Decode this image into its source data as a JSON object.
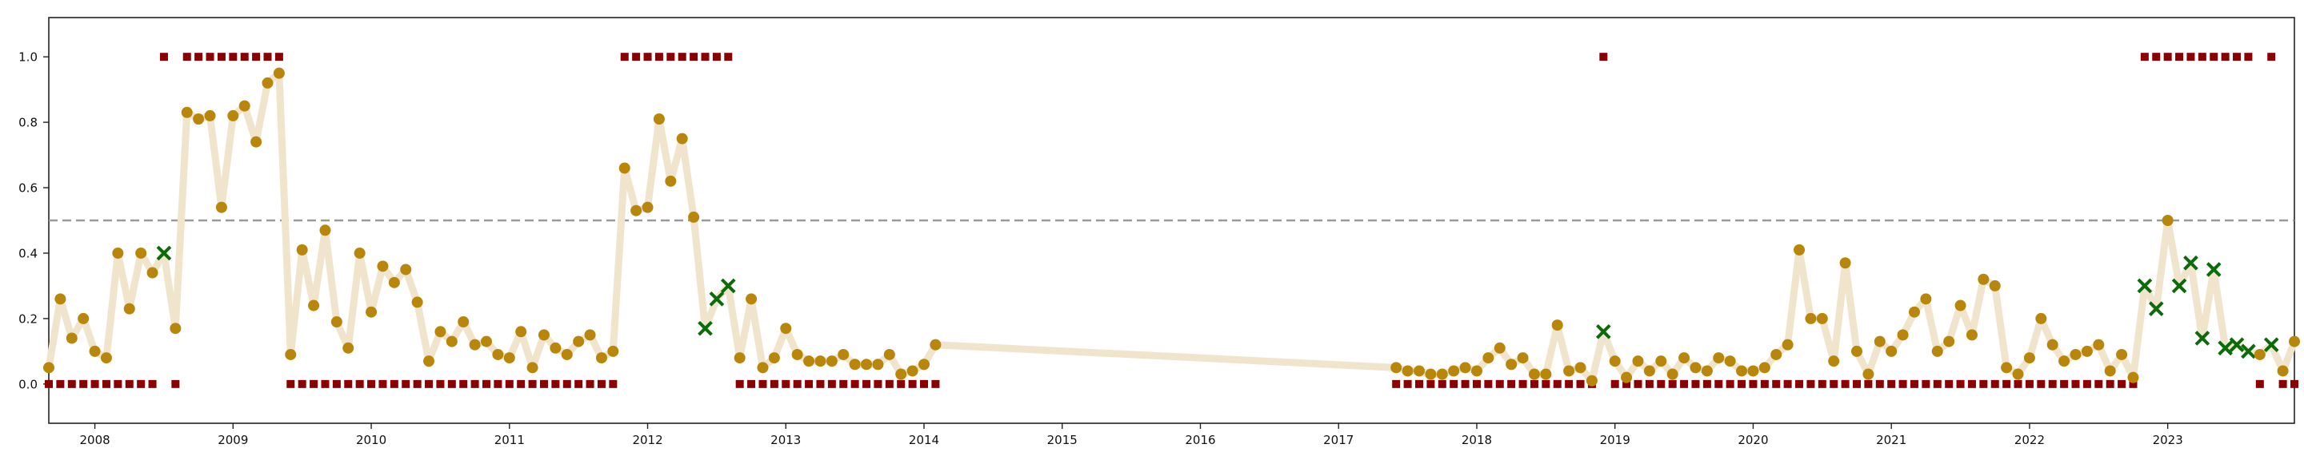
{
  "chart_data": {
    "type": "scatter",
    "x_axis": {
      "type": "date",
      "range": [
        "2007-09-01",
        "2023-12-01"
      ],
      "ticks": [
        "2008",
        "2009",
        "2010",
        "2011",
        "2012",
        "2013",
        "2014",
        "2015",
        "2016",
        "2017",
        "2018",
        "2019",
        "2020",
        "2021",
        "2022",
        "2023"
      ]
    },
    "y_axis": {
      "range": [
        -0.12,
        1.12
      ],
      "ticks": [
        "0.0",
        "0.2",
        "0.4",
        "0.6",
        "0.8",
        "1.0"
      ]
    },
    "reference_line": {
      "y": 0.5,
      "style": "dashed",
      "color": "#999999"
    },
    "colors": {
      "trend_line": "#f0e4cc",
      "probability_point": "#b8860b",
      "cross_marker": "#0a6b0a",
      "label_square": "#8b0000"
    },
    "grid": false,
    "legend": "none",
    "score_series": [
      [
        "2007-09",
        0.05
      ],
      [
        "2007-10",
        0.26
      ],
      [
        "2007-11",
        0.14
      ],
      [
        "2007-12",
        0.2
      ],
      [
        "2008-01",
        0.1
      ],
      [
        "2008-02",
        0.08
      ],
      [
        "2008-03",
        0.4
      ],
      [
        "2008-04",
        0.23
      ],
      [
        "2008-05",
        0.4
      ],
      [
        "2008-06",
        0.34
      ],
      [
        "2008-07",
        0.4
      ],
      [
        "2008-08",
        0.17
      ],
      [
        "2008-09",
        0.83
      ],
      [
        "2008-10",
        0.81
      ],
      [
        "2008-11",
        0.82
      ],
      [
        "2008-12",
        0.54
      ],
      [
        "2009-01",
        0.82
      ],
      [
        "2009-02",
        0.85
      ],
      [
        "2009-03",
        0.74
      ],
      [
        "2009-04",
        0.92
      ],
      [
        "2009-05",
        0.95
      ],
      [
        "2009-06",
        0.09
      ],
      [
        "2009-07",
        0.41
      ],
      [
        "2009-08",
        0.24
      ],
      [
        "2009-09",
        0.47
      ],
      [
        "2009-10",
        0.19
      ],
      [
        "2009-11",
        0.11
      ],
      [
        "2009-12",
        0.4
      ],
      [
        "2010-01",
        0.22
      ],
      [
        "2010-02",
        0.36
      ],
      [
        "2010-03",
        0.31
      ],
      [
        "2010-04",
        0.35
      ],
      [
        "2010-05",
        0.25
      ],
      [
        "2010-06",
        0.07
      ],
      [
        "2010-07",
        0.16
      ],
      [
        "2010-08",
        0.13
      ],
      [
        "2010-09",
        0.19
      ],
      [
        "2010-10",
        0.12
      ],
      [
        "2010-11",
        0.13
      ],
      [
        "2010-12",
        0.09
      ],
      [
        "2011-01",
        0.08
      ],
      [
        "2011-02",
        0.16
      ],
      [
        "2011-03",
        0.05
      ],
      [
        "2011-04",
        0.15
      ],
      [
        "2011-05",
        0.11
      ],
      [
        "2011-06",
        0.09
      ],
      [
        "2011-07",
        0.13
      ],
      [
        "2011-08",
        0.15
      ],
      [
        "2011-09",
        0.08
      ],
      [
        "2011-10",
        0.1
      ],
      [
        "2011-11",
        0.66
      ],
      [
        "2011-12",
        0.53
      ],
      [
        "2012-01",
        0.54
      ],
      [
        "2012-02",
        0.81
      ],
      [
        "2012-03",
        0.62
      ],
      [
        "2012-04",
        0.75
      ],
      [
        "2012-05",
        0.51
      ],
      [
        "2012-06",
        0.17
      ],
      [
        "2012-07",
        0.26
      ],
      [
        "2012-08",
        0.3
      ],
      [
        "2012-09",
        0.08
      ],
      [
        "2012-10",
        0.26
      ],
      [
        "2012-11",
        0.05
      ],
      [
        "2012-12",
        0.08
      ],
      [
        "2013-01",
        0.17
      ],
      [
        "2013-02",
        0.09
      ],
      [
        "2013-03",
        0.07
      ],
      [
        "2013-04",
        0.07
      ],
      [
        "2013-05",
        0.07
      ],
      [
        "2013-06",
        0.09
      ],
      [
        "2013-07",
        0.06
      ],
      [
        "2013-08",
        0.06
      ],
      [
        "2013-09",
        0.06
      ],
      [
        "2013-10",
        0.09
      ],
      [
        "2013-11",
        0.03
      ],
      [
        "2013-12",
        0.04
      ],
      [
        "2014-01",
        0.06
      ],
      [
        "2014-02",
        0.12
      ],
      [
        "2017-06",
        0.05
      ],
      [
        "2017-07",
        0.04
      ],
      [
        "2017-08",
        0.04
      ],
      [
        "2017-09",
        0.03
      ],
      [
        "2017-10",
        0.03
      ],
      [
        "2017-11",
        0.04
      ],
      [
        "2017-12",
        0.05
      ],
      [
        "2018-01",
        0.04
      ],
      [
        "2018-02",
        0.08
      ],
      [
        "2018-03",
        0.11
      ],
      [
        "2018-04",
        0.06
      ],
      [
        "2018-05",
        0.08
      ],
      [
        "2018-06",
        0.03
      ],
      [
        "2018-07",
        0.03
      ],
      [
        "2018-08",
        0.18
      ],
      [
        "2018-09",
        0.04
      ],
      [
        "2018-10",
        0.05
      ],
      [
        "2018-11",
        0.01
      ],
      [
        "2018-12",
        0.16
      ],
      [
        "2019-01",
        0.07
      ],
      [
        "2019-02",
        0.02
      ],
      [
        "2019-03",
        0.07
      ],
      [
        "2019-04",
        0.04
      ],
      [
        "2019-05",
        0.07
      ],
      [
        "2019-06",
        0.03
      ],
      [
        "2019-07",
        0.08
      ],
      [
        "2019-08",
        0.05
      ],
      [
        "2019-09",
        0.04
      ],
      [
        "2019-10",
        0.08
      ],
      [
        "2019-11",
        0.07
      ],
      [
        "2019-12",
        0.04
      ],
      [
        "2020-01",
        0.04
      ],
      [
        "2020-02",
        0.05
      ],
      [
        "2020-03",
        0.09
      ],
      [
        "2020-04",
        0.12
      ],
      [
        "2020-05",
        0.41
      ],
      [
        "2020-06",
        0.2
      ],
      [
        "2020-07",
        0.2
      ],
      [
        "2020-08",
        0.07
      ],
      [
        "2020-09",
        0.37
      ],
      [
        "2020-10",
        0.1
      ],
      [
        "2020-11",
        0.03
      ],
      [
        "2020-12",
        0.13
      ],
      [
        "2021-01",
        0.1
      ],
      [
        "2021-02",
        0.15
      ],
      [
        "2021-03",
        0.22
      ],
      [
        "2021-04",
        0.26
      ],
      [
        "2021-05",
        0.1
      ],
      [
        "2021-06",
        0.13
      ],
      [
        "2021-07",
        0.24
      ],
      [
        "2021-08",
        0.15
      ],
      [
        "2021-09",
        0.32
      ],
      [
        "2021-10",
        0.3
      ],
      [
        "2021-11",
        0.05
      ],
      [
        "2021-12",
        0.03
      ],
      [
        "2022-01",
        0.08
      ],
      [
        "2022-02",
        0.2
      ],
      [
        "2022-03",
        0.12
      ],
      [
        "2022-04",
        0.07
      ],
      [
        "2022-05",
        0.09
      ],
      [
        "2022-06",
        0.1
      ],
      [
        "2022-07",
        0.12
      ],
      [
        "2022-08",
        0.04
      ],
      [
        "2022-09",
        0.09
      ],
      [
        "2022-10",
        0.02
      ],
      [
        "2022-11",
        0.3
      ],
      [
        "2022-12",
        0.23
      ],
      [
        "2023-01",
        0.5
      ],
      [
        "2023-02",
        0.3
      ],
      [
        "2023-03",
        0.37
      ],
      [
        "2023-04",
        0.14
      ],
      [
        "2023-05",
        0.35
      ],
      [
        "2023-06",
        0.11
      ],
      [
        "2023-07",
        0.12
      ],
      [
        "2023-08",
        0.1
      ],
      [
        "2023-09",
        0.09
      ],
      [
        "2023-10",
        0.12
      ],
      [
        "2023-11",
        0.04
      ],
      [
        "2023-12",
        0.13
      ]
    ],
    "cross_months": [
      "2008-07",
      "2012-06",
      "2012-07",
      "2012-08",
      "2018-12",
      "2022-11",
      "2022-12",
      "2023-02",
      "2023-03",
      "2023-04",
      "2023-05",
      "2023-06",
      "2023-07",
      "2023-08",
      "2023-10"
    ],
    "label_series": [
      [
        "2007-09",
        0
      ],
      [
        "2007-10",
        0
      ],
      [
        "2007-11",
        0
      ],
      [
        "2007-12",
        0
      ],
      [
        "2008-01",
        0
      ],
      [
        "2008-02",
        0
      ],
      [
        "2008-03",
        0
      ],
      [
        "2008-04",
        0
      ],
      [
        "2008-05",
        0
      ],
      [
        "2008-06",
        0
      ],
      [
        "2008-07",
        1
      ],
      [
        "2008-08",
        0
      ],
      [
        "2008-09",
        1
      ],
      [
        "2008-10",
        1
      ],
      [
        "2008-11",
        1
      ],
      [
        "2008-12",
        1
      ],
      [
        "2009-01",
        1
      ],
      [
        "2009-02",
        1
      ],
      [
        "2009-03",
        1
      ],
      [
        "2009-04",
        1
      ],
      [
        "2009-05",
        1
      ],
      [
        "2009-06",
        0
      ],
      [
        "2009-07",
        0
      ],
      [
        "2009-08",
        0
      ],
      [
        "2009-09",
        0
      ],
      [
        "2009-10",
        0
      ],
      [
        "2009-11",
        0
      ],
      [
        "2009-12",
        0
      ],
      [
        "2010-01",
        0
      ],
      [
        "2010-02",
        0
      ],
      [
        "2010-03",
        0
      ],
      [
        "2010-04",
        0
      ],
      [
        "2010-05",
        0
      ],
      [
        "2010-06",
        0
      ],
      [
        "2010-07",
        0
      ],
      [
        "2010-08",
        0
      ],
      [
        "2010-09",
        0
      ],
      [
        "2010-10",
        0
      ],
      [
        "2010-11",
        0
      ],
      [
        "2010-12",
        0
      ],
      [
        "2011-01",
        0
      ],
      [
        "2011-02",
        0
      ],
      [
        "2011-03",
        0
      ],
      [
        "2011-04",
        0
      ],
      [
        "2011-05",
        0
      ],
      [
        "2011-06",
        0
      ],
      [
        "2011-07",
        0
      ],
      [
        "2011-08",
        0
      ],
      [
        "2011-09",
        0
      ],
      [
        "2011-10",
        0
      ],
      [
        "2011-11",
        1
      ],
      [
        "2011-12",
        1
      ],
      [
        "2012-01",
        1
      ],
      [
        "2012-02",
        1
      ],
      [
        "2012-03",
        1
      ],
      [
        "2012-04",
        1
      ],
      [
        "2012-05",
        1
      ],
      [
        "2012-06",
        1
      ],
      [
        "2012-07",
        1
      ],
      [
        "2012-08",
        1
      ],
      [
        "2012-09",
        0
      ],
      [
        "2012-10",
        0
      ],
      [
        "2012-11",
        0
      ],
      [
        "2012-12",
        0
      ],
      [
        "2013-01",
        0
      ],
      [
        "2013-02",
        0
      ],
      [
        "2013-03",
        0
      ],
      [
        "2013-04",
        0
      ],
      [
        "2013-05",
        0
      ],
      [
        "2013-06",
        0
      ],
      [
        "2013-07",
        0
      ],
      [
        "2013-08",
        0
      ],
      [
        "2013-09",
        0
      ],
      [
        "2013-10",
        0
      ],
      [
        "2013-11",
        0
      ],
      [
        "2013-12",
        0
      ],
      [
        "2014-01",
        0
      ],
      [
        "2014-02",
        0
      ],
      [
        "2017-06",
        0
      ],
      [
        "2017-07",
        0
      ],
      [
        "2017-08",
        0
      ],
      [
        "2017-09",
        0
      ],
      [
        "2017-10",
        0
      ],
      [
        "2017-11",
        0
      ],
      [
        "2017-12",
        0
      ],
      [
        "2018-01",
        0
      ],
      [
        "2018-02",
        0
      ],
      [
        "2018-03",
        0
      ],
      [
        "2018-04",
        0
      ],
      [
        "2018-05",
        0
      ],
      [
        "2018-06",
        0
      ],
      [
        "2018-07",
        0
      ],
      [
        "2018-08",
        0
      ],
      [
        "2018-09",
        0
      ],
      [
        "2018-10",
        0
      ],
      [
        "2018-11",
        0
      ],
      [
        "2018-12",
        1
      ],
      [
        "2019-01",
        0
      ],
      [
        "2019-02",
        0
      ],
      [
        "2019-03",
        0
      ],
      [
        "2019-04",
        0
      ],
      [
        "2019-05",
        0
      ],
      [
        "2019-06",
        0
      ],
      [
        "2019-07",
        0
      ],
      [
        "2019-08",
        0
      ],
      [
        "2019-09",
        0
      ],
      [
        "2019-10",
        0
      ],
      [
        "2019-11",
        0
      ],
      [
        "2019-12",
        0
      ],
      [
        "2020-01",
        0
      ],
      [
        "2020-02",
        0
      ],
      [
        "2020-03",
        0
      ],
      [
        "2020-04",
        0
      ],
      [
        "2020-05",
        0
      ],
      [
        "2020-06",
        0
      ],
      [
        "2020-07",
        0
      ],
      [
        "2020-08",
        0
      ],
      [
        "2020-09",
        0
      ],
      [
        "2020-10",
        0
      ],
      [
        "2020-11",
        0
      ],
      [
        "2020-12",
        0
      ],
      [
        "2021-01",
        0
      ],
      [
        "2021-02",
        0
      ],
      [
        "2021-03",
        0
      ],
      [
        "2021-04",
        0
      ],
      [
        "2021-05",
        0
      ],
      [
        "2021-06",
        0
      ],
      [
        "2021-07",
        0
      ],
      [
        "2021-08",
        0
      ],
      [
        "2021-09",
        0
      ],
      [
        "2021-10",
        0
      ],
      [
        "2021-11",
        0
      ],
      [
        "2021-12",
        0
      ],
      [
        "2022-01",
        0
      ],
      [
        "2022-02",
        0
      ],
      [
        "2022-03",
        0
      ],
      [
        "2022-04",
        0
      ],
      [
        "2022-05",
        0
      ],
      [
        "2022-06",
        0
      ],
      [
        "2022-07",
        0
      ],
      [
        "2022-08",
        0
      ],
      [
        "2022-09",
        0
      ],
      [
        "2022-10",
        0
      ],
      [
        "2022-11",
        1
      ],
      [
        "2022-12",
        1
      ],
      [
        "2023-01",
        1
      ],
      [
        "2023-02",
        1
      ],
      [
        "2023-03",
        1
      ],
      [
        "2023-04",
        1
      ],
      [
        "2023-05",
        1
      ],
      [
        "2023-06",
        1
      ],
      [
        "2023-07",
        1
      ],
      [
        "2023-08",
        1
      ],
      [
        "2023-09",
        0
      ],
      [
        "2023-10",
        1
      ],
      [
        "2023-11",
        0
      ],
      [
        "2023-12",
        0
      ]
    ]
  }
}
